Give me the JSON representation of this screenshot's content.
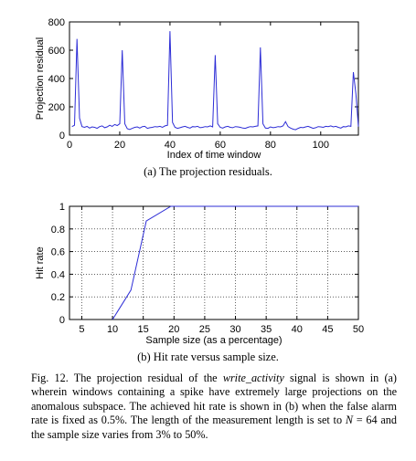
{
  "chart_data": [
    {
      "type": "line",
      "title": "",
      "xlabel": "Index of time window",
      "ylabel": "Projection residual",
      "xlim": [
        0,
        115
      ],
      "ylim": [
        0,
        800
      ],
      "xticks": [
        0,
        20,
        40,
        60,
        80,
        100
      ],
      "yticks": [
        0,
        200,
        400,
        600,
        800
      ],
      "grid": false,
      "color": "#2d2dd6",
      "x": [
        1,
        2,
        3,
        4,
        5,
        6,
        7,
        8,
        9,
        10,
        11,
        12,
        13,
        14,
        15,
        16,
        17,
        18,
        19,
        20,
        21,
        22,
        23,
        24,
        25,
        26,
        27,
        28,
        29,
        30,
        31,
        32,
        33,
        34,
        35,
        36,
        37,
        38,
        39,
        40,
        41,
        42,
        43,
        44,
        45,
        46,
        47,
        48,
        49,
        50,
        51,
        52,
        53,
        54,
        55,
        56,
        57,
        58,
        59,
        60,
        61,
        62,
        63,
        64,
        65,
        66,
        67,
        68,
        69,
        70,
        71,
        72,
        73,
        74,
        75,
        76,
        77,
        78,
        79,
        80,
        81,
        82,
        83,
        84,
        85,
        86,
        87,
        88,
        89,
        90,
        91,
        92,
        93,
        94,
        95,
        96,
        97,
        98,
        99,
        100,
        101,
        102,
        103,
        104,
        105,
        106,
        107,
        108,
        109,
        110,
        111,
        112,
        113,
        114,
        115
      ],
      "y": [
        60,
        70,
        680,
        120,
        60,
        55,
        62,
        50,
        58,
        55,
        48,
        60,
        65,
        52,
        58,
        70,
        62,
        75,
        68,
        80,
        600,
        80,
        45,
        40,
        48,
        55,
        58,
        50,
        60,
        62,
        48,
        52,
        55,
        60,
        58,
        62,
        55,
        65,
        70,
        735,
        90,
        55,
        48,
        52,
        58,
        62,
        55,
        50,
        60,
        58,
        62,
        52,
        55,
        60,
        58,
        65,
        58,
        565,
        80,
        55,
        50,
        58,
        62,
        55,
        52,
        60,
        58,
        55,
        50,
        48,
        55,
        60,
        58,
        62,
        65,
        620,
        80,
        50,
        48,
        58,
        52,
        55,
        60,
        58,
        65,
        95,
        60,
        50,
        42,
        38,
        48,
        55,
        52,
        58,
        62,
        55,
        48,
        52,
        60,
        58,
        55,
        62,
        60,
        65,
        58,
        62,
        55,
        50,
        60,
        58,
        65,
        62,
        445,
        290,
        60
      ]
    },
    {
      "type": "line",
      "title": "",
      "xlabel": "Sample size (as a percentage)",
      "ylabel": "Hit rate",
      "xlim": [
        3,
        50
      ],
      "ylim": [
        0,
        1
      ],
      "xticks": [
        5,
        10,
        15,
        20,
        25,
        30,
        35,
        40,
        45,
        50
      ],
      "yticks": [
        0,
        0.2,
        0.4,
        0.6,
        0.8,
        1
      ],
      "grid": true,
      "color": "#2d2dd6",
      "x": [
        10,
        13,
        15.5,
        19.5,
        50
      ],
      "y": [
        0,
        0.26,
        0.87,
        1,
        1
      ]
    }
  ],
  "captions": {
    "a": "(a)  The projection residuals.",
    "b": "(b)  Hit rate versus sample size."
  },
  "figure_caption": {
    "lead": "Fig. 12.   The projection residual of the ",
    "signal": "write_activity",
    "rest": " signal is shown in (a) wherein windows containing a spike have extremely large projections on the anomalous subspace. The achieved hit rate is shown in (b) when the false alarm rate is fixed as 0.5%. The length of the measurement length is set to ",
    "n_symbol": "N",
    "tail": " = 64 and the sample size varies from 3% to 50%."
  }
}
